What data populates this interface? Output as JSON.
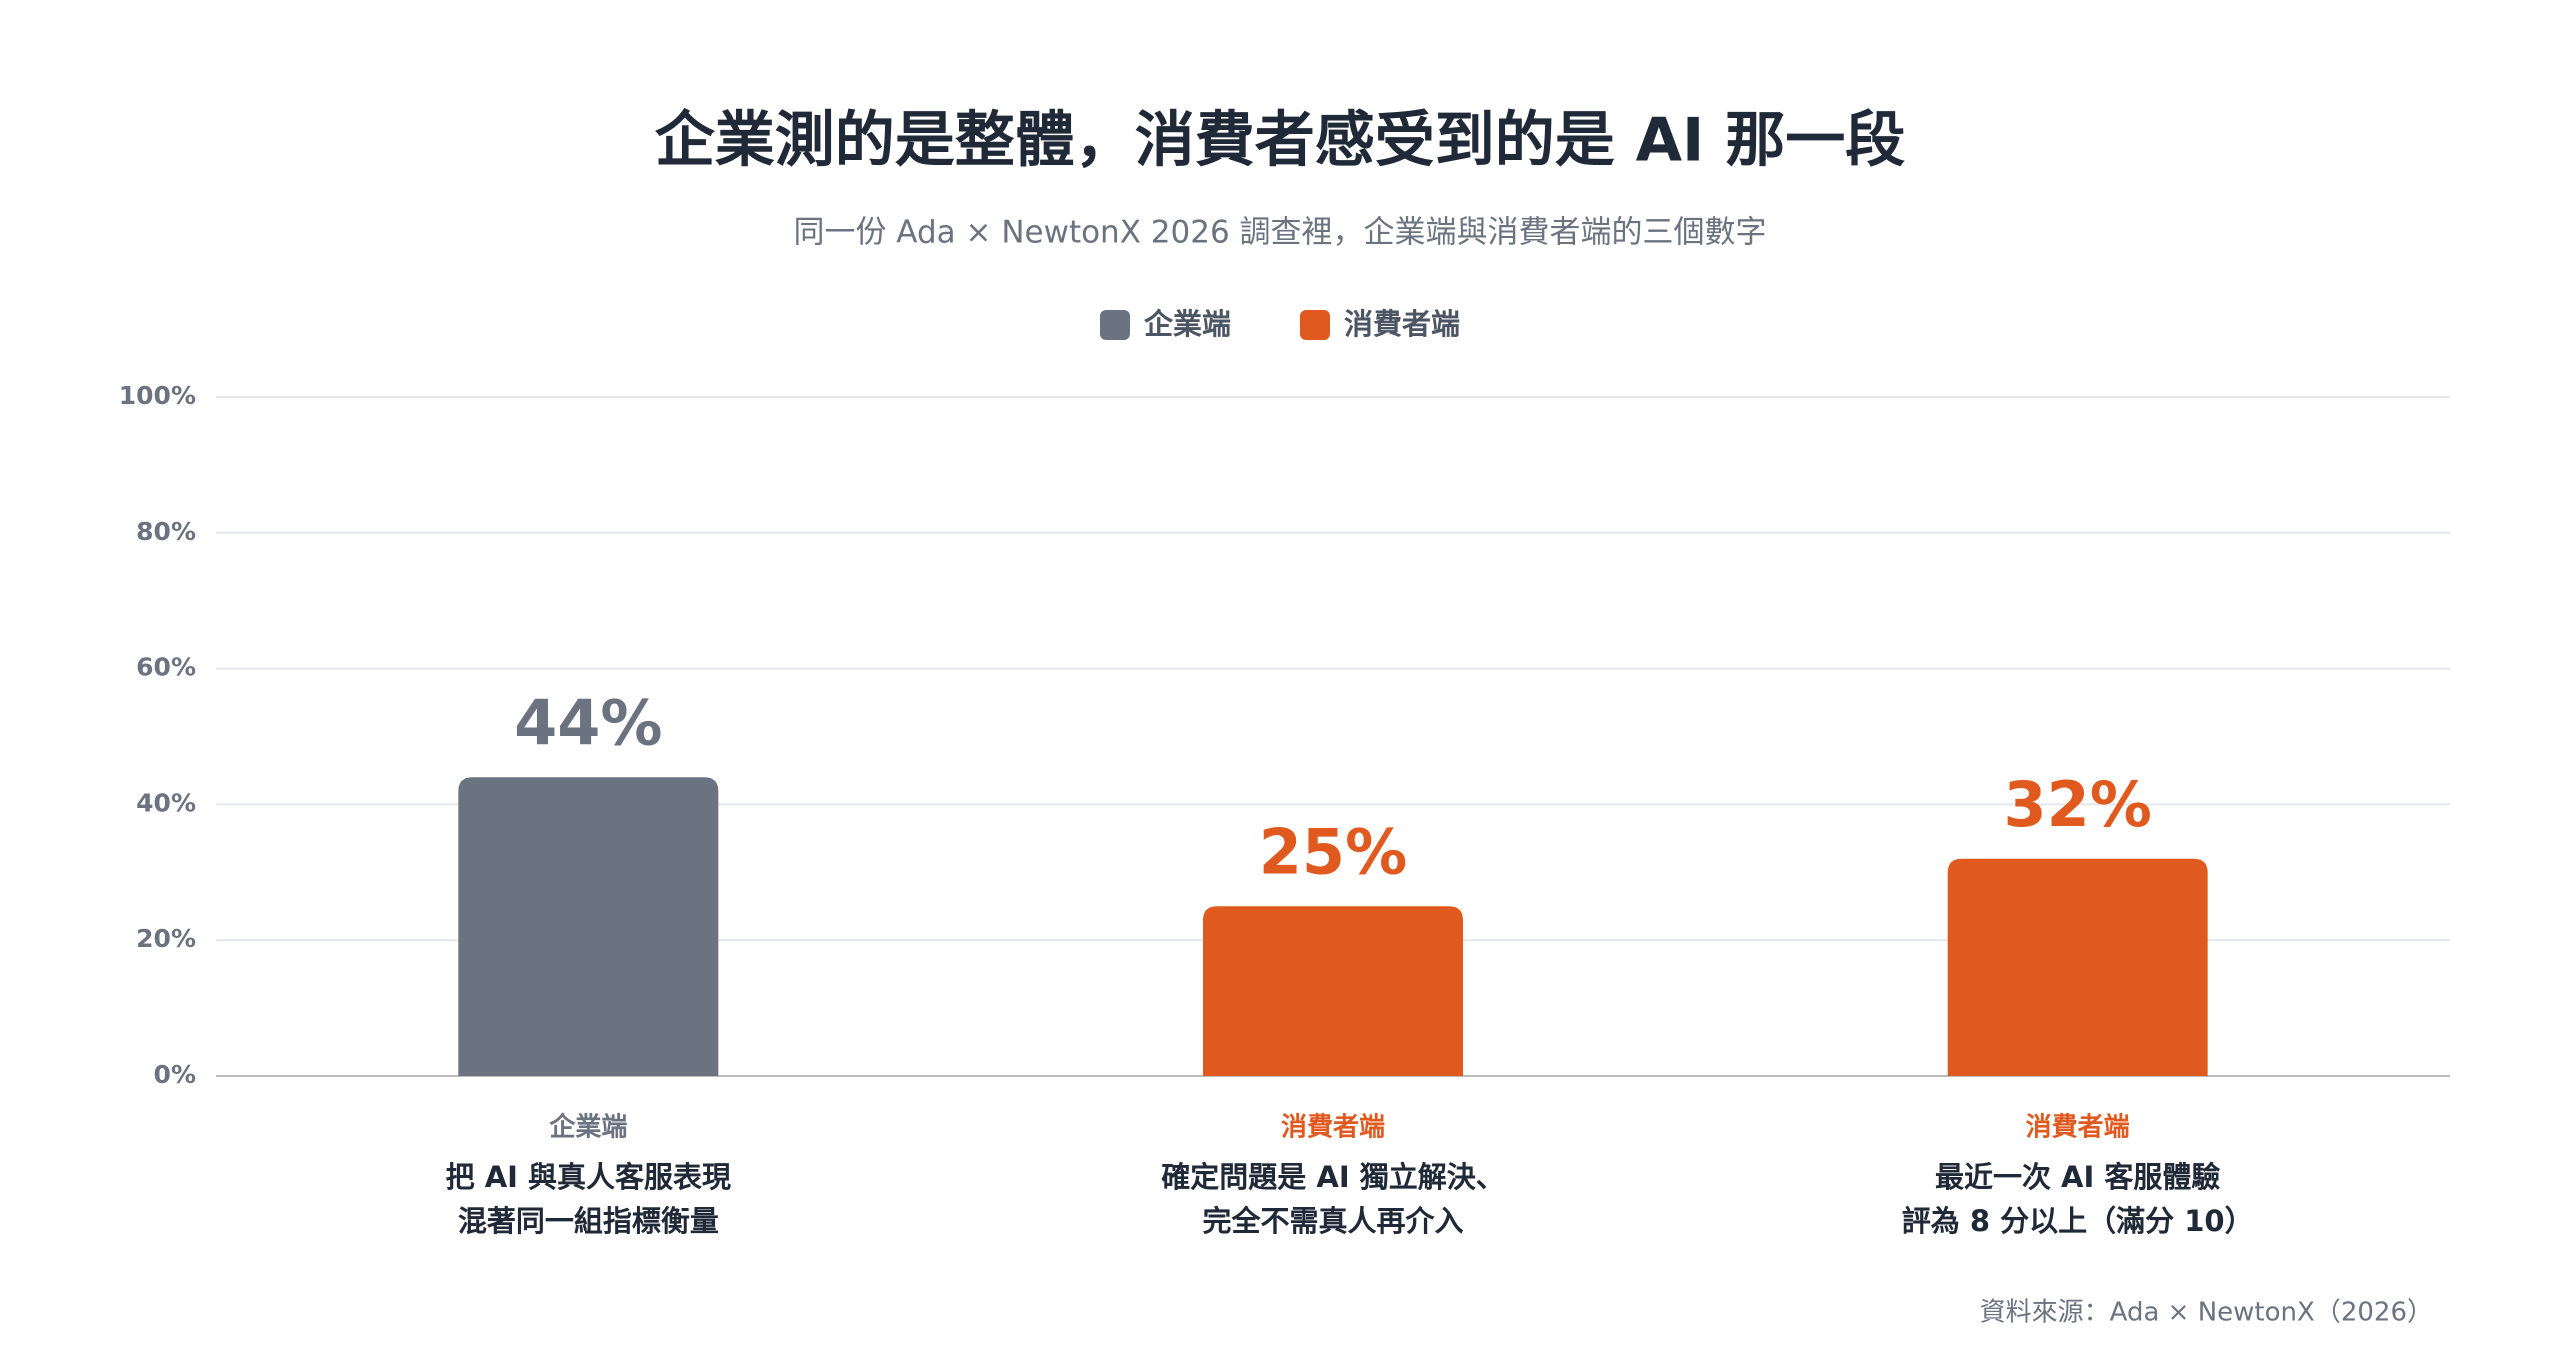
{
  "chart_data": {
    "type": "bar",
    "title": "企業測的是整體，消費者感受到的是 AI 那一段",
    "subtitle": "同一份 Ada × NewtonX 2026 調查裡，企業端與消費者端的三個數字",
    "categories": [
      "企業端",
      "消費者端",
      "消費者端"
    ],
    "descriptions": [
      [
        "把 AI 與真人客服表現",
        "混著同一組指標衡量"
      ],
      [
        "確定問題是 AI 獨立解決、",
        "完全不需真人再介入"
      ],
      [
        "最近一次 AI 客服體驗",
        "評為 8 分以上（滿分 10）"
      ]
    ],
    "series": [
      {
        "name": "企業端",
        "color": "#6b7280",
        "values": [
          44,
          null,
          null
        ],
        "value_labels": [
          "44%",
          null,
          null
        ]
      },
      {
        "name": "消費者端",
        "color": "#e05a1f",
        "values": [
          null,
          25,
          32
        ],
        "value_labels": [
          null,
          "25%",
          "32%"
        ]
      }
    ],
    "ylim": [
      0,
      100
    ],
    "yticks": [
      {
        "value": 0,
        "label": "0%"
      },
      {
        "value": 20,
        "label": "20%"
      },
      {
        "value": 40,
        "label": "40%"
      },
      {
        "value": 60,
        "label": "60%"
      },
      {
        "value": 80,
        "label": "80%"
      },
      {
        "value": 100,
        "label": "100%"
      }
    ],
    "grid": true,
    "legend": "top",
    "source": "資料來源：Ada × NewtonX（2026）"
  }
}
